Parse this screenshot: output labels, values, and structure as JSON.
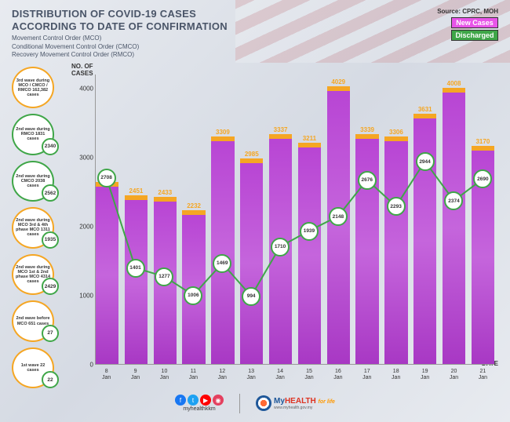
{
  "title_line1": "DISTRIBUTION OF COVID-19 CASES",
  "title_line2": "ACCORDING TO DATE OF CONFIRMATION",
  "subtitle": "Movement Control Order (MCO)\nConditional Movement Control Order (CMCO)\nRecovery Movement Control Order (RMCO)",
  "source": "Source: CPRC, MOH",
  "legend": {
    "new_cases": {
      "label": "New Cases",
      "color": "#e855e8"
    },
    "discharged": {
      "label": "Discharged",
      "color": "#3fa648"
    }
  },
  "chart": {
    "type": "bar+line",
    "y_title": "NO. OF\nCASES",
    "x_title": "DATE",
    "ylim": [
      0,
      4200
    ],
    "yticks": [
      0,
      1000,
      2000,
      3000,
      4000
    ],
    "bar_color": "#b845d4",
    "bar_top_color": "#f5a623",
    "line_color": "#3fa648",
    "bar_label_color": "#f5a623",
    "background": "transparent",
    "dates": [
      "8\nJan",
      "9\nJan",
      "10\nJan",
      "11\nJan",
      "12\nJan",
      "13\nJan",
      "14\nJan",
      "15\nJan",
      "16\nJan",
      "17\nJan",
      "18\nJan",
      "19\nJan",
      "20\nJan",
      "21\nJan"
    ],
    "new_cases": [
      2643,
      2451,
      2433,
      2232,
      3309,
      2985,
      3337,
      3211,
      4029,
      3339,
      3306,
      3631,
      4008,
      3170
    ],
    "discharged": [
      2708,
      1401,
      1277,
      1006,
      1469,
      994,
      1710,
      1939,
      2148,
      2676,
      2293,
      2944,
      2374,
      2690
    ]
  },
  "waves": [
    {
      "text": "3rd wave during MCO / CMCO / RMCO 162,382 cases",
      "border": "#f5a623",
      "badge": null
    },
    {
      "text": "2nd wave during RMCO 1831 cases",
      "border": "#3fa648",
      "badge": "2340",
      "badge_border": "#3fa648"
    },
    {
      "text": "2nd wave during CMCO 2038 cases",
      "border": "#3fa648",
      "badge": "2562",
      "badge_border": "#3fa648"
    },
    {
      "text": "2nd wave during MCO 3rd & 4th phase MCO 1311 cases",
      "border": "#f5a623",
      "badge": "1935",
      "badge_border": "#3fa648"
    },
    {
      "text": "2nd wave during MCO 1st & 2nd phase MCO 4314 cases",
      "border": "#f5a623",
      "badge": "2429",
      "badge_border": "#3fa648"
    },
    {
      "text": "2nd wave before MCO 651 cases",
      "border": "#f5a623",
      "badge": "27",
      "badge_border": "#3fa648"
    },
    {
      "text": "1st wave 22 cases",
      "border": "#f5a623",
      "badge": "22",
      "badge_border": "#3fa648"
    }
  ],
  "footer": {
    "social_handle": "myhealthkkm",
    "social_colors": {
      "fb": "#1877f2",
      "tw": "#1da1f2",
      "yt": "#ff0000",
      "ig": "#e4405f"
    },
    "logo_name": "MyHEALTH",
    "logo_tag": "for life",
    "logo_url": "www.myhealth.gov.my"
  }
}
